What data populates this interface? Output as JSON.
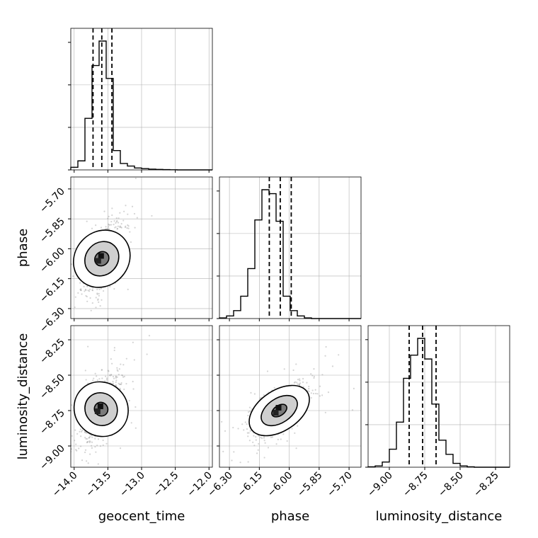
{
  "chart_data": {
    "type": "corner",
    "parameters": [
      "geocent_time",
      "phase",
      "luminosity_distance"
    ],
    "axis_labels": {
      "geocent_time": "geocent_time",
      "phase": "phase",
      "luminosity_distance": "luminosity_distance"
    },
    "ranges": {
      "geocent_time": [
        -14.05,
        -11.95
      ],
      "phase": [
        -6.35,
        -5.64
      ],
      "luminosity_distance": [
        -9.15,
        -8.15
      ]
    },
    "ticks": {
      "geocent_time": [
        -14.0,
        -13.5,
        -13.0,
        -12.5,
        -12.0
      ],
      "phase": [
        -6.3,
        -6.15,
        -6.0,
        -5.85,
        -5.7
      ],
      "luminosity_distance": [
        -9.0,
        -8.75,
        -8.5,
        -8.25
      ]
    },
    "tick_labels": {
      "geocent_time": [
        "−14.0",
        "−13.5",
        "−13.0",
        "−12.5",
        "−12.0"
      ],
      "phase": [
        "−6.30",
        "−6.15",
        "−6.00",
        "−5.85",
        "−5.70"
      ],
      "luminosity_distance": [
        "−9.00",
        "−8.75",
        "−8.50",
        "−8.25"
      ]
    },
    "quantiles": {
      "geocent_time": [
        -13.72,
        -13.59,
        -13.44
      ],
      "phase": [
        -6.1,
        -6.045,
        -5.99
      ],
      "luminosity_distance": [
        -8.86,
        -8.765,
        -8.67
      ]
    },
    "histograms": {
      "geocent_time": {
        "edges": [
          -14.05,
          -13.945,
          -13.84,
          -13.735,
          -13.63,
          -13.525,
          -13.42,
          -13.315,
          -13.21,
          -13.105,
          -13.0,
          -12.895,
          -12.79,
          -12.685,
          -12.58,
          -12.475,
          -12.37,
          -12.265,
          -12.16,
          -12.055,
          -11.95
        ],
        "counts": [
          2,
          7,
          40,
          81,
          100,
          71,
          15,
          5,
          3,
          1.5,
          1,
          0.6,
          0.4,
          0.2,
          0.1,
          0,
          0,
          0,
          0,
          0
        ]
      },
      "phase": {
        "edges": [
          -6.35,
          -6.3145,
          -6.279,
          -6.2435,
          -6.208,
          -6.1725,
          -6.137,
          -6.1015,
          -6.066,
          -6.0305,
          -5.995,
          -5.9595,
          -5.924,
          -5.8885,
          -5.853,
          -5.8175,
          -5.782,
          -5.7465,
          -5.711,
          -5.6755,
          -5.64
        ],
        "counts": [
          0.5,
          2,
          6,
          17,
          38,
          75,
          98,
          95,
          74,
          17,
          6,
          2,
          0.5,
          0,
          0,
          0,
          0,
          0,
          0,
          0
        ]
      },
      "luminosity_distance": {
        "edges": [
          -9.15,
          -9.1,
          -9.05,
          -9.0,
          -8.95,
          -8.9,
          -8.85,
          -8.8,
          -8.75,
          -8.7,
          -8.65,
          -8.6,
          -8.55,
          -8.5,
          -8.45,
          -8.4,
          -8.35,
          -8.3,
          -8.25,
          -8.2,
          -8.15
        ],
        "counts": [
          0.3,
          1,
          4,
          14,
          35,
          69,
          87,
          100,
          84,
          49,
          21,
          10,
          3,
          1,
          0.3,
          0,
          0,
          0,
          0,
          0
        ]
      }
    },
    "pairs": [
      {
        "x": "geocent_time",
        "y": "phase",
        "center": [
          -13.59,
          -6.05
        ],
        "spread": [
          0.15,
          0.09
        ],
        "tilt": 0.62,
        "contours": [
          0.5,
          1.2,
          2.0
        ]
      },
      {
        "x": "geocent_time",
        "y": "luminosity_distance",
        "center": [
          -13.6,
          -8.74
        ],
        "spread": [
          0.15,
          0.12
        ],
        "tilt": 0.5,
        "contours": [
          0.5,
          1.2,
          2.0
        ]
      },
      {
        "x": "phase",
        "y": "luminosity_distance",
        "center": [
          -6.05,
          -8.75
        ],
        "spread": [
          0.07,
          0.1
        ],
        "tilt": 0.66,
        "contours": [
          0.5,
          1.2,
          2.0
        ]
      }
    ],
    "grid": true,
    "colors": {
      "line": "#000000",
      "grid": "#b0b0b0",
      "points": "#a0a0a0",
      "contour": "#000000"
    }
  }
}
